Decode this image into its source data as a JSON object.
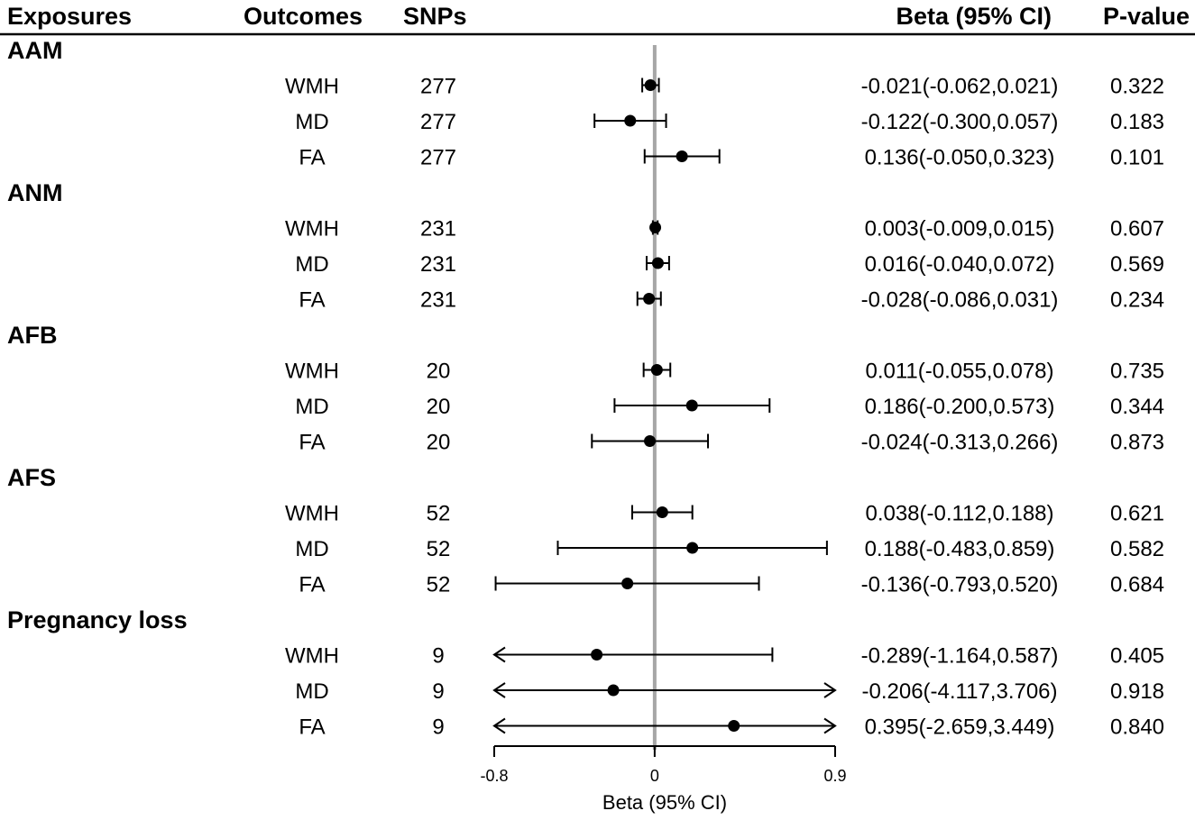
{
  "headers": {
    "exposures": "Exposures",
    "outcomes": "Outcomes",
    "snps": "SNPs",
    "beta": "Beta (95% CI)",
    "pvalue": "P-value"
  },
  "chart_data": {
    "type": "forest",
    "xlabel": "Beta (95% CI)",
    "xlim": [
      -0.8,
      0.9
    ],
    "ticks": [
      -0.8,
      0,
      0.9
    ],
    "tick_labels": [
      "-0.8",
      "0",
      "0.9"
    ],
    "reference_line": 0,
    "groups": [
      {
        "name": "AAM",
        "rows": [
          {
            "outcome": "WMH",
            "snps": "277",
            "beta": -0.021,
            "lo": -0.062,
            "hi": 0.021,
            "ci_text": "-0.021(-0.062,0.021)",
            "p": "0.322"
          },
          {
            "outcome": "MD",
            "snps": "277",
            "beta": -0.122,
            "lo": -0.3,
            "hi": 0.057,
            "ci_text": "-0.122(-0.300,0.057)",
            "p": "0.183"
          },
          {
            "outcome": "FA",
            "snps": "277",
            "beta": 0.136,
            "lo": -0.05,
            "hi": 0.323,
            "ci_text": "0.136(-0.050,0.323)",
            "p": "0.101"
          }
        ]
      },
      {
        "name": "ANM",
        "rows": [
          {
            "outcome": "WMH",
            "snps": "231",
            "beta": 0.003,
            "lo": -0.009,
            "hi": 0.015,
            "ci_text": "0.003(-0.009,0.015)",
            "p": "0.607"
          },
          {
            "outcome": "MD",
            "snps": "231",
            "beta": 0.016,
            "lo": -0.04,
            "hi": 0.072,
            "ci_text": "0.016(-0.040,0.072)",
            "p": "0.569"
          },
          {
            "outcome": "FA",
            "snps": "231",
            "beta": -0.028,
            "lo": -0.086,
            "hi": 0.031,
            "ci_text": "-0.028(-0.086,0.031)",
            "p": "0.234"
          }
        ]
      },
      {
        "name": "AFB",
        "rows": [
          {
            "outcome": "WMH",
            "snps": "20",
            "beta": 0.011,
            "lo": -0.055,
            "hi": 0.078,
            "ci_text": "0.011(-0.055,0.078)",
            "p": "0.735"
          },
          {
            "outcome": "MD",
            "snps": "20",
            "beta": 0.186,
            "lo": -0.2,
            "hi": 0.573,
            "ci_text": "0.186(-0.200,0.573)",
            "p": "0.344"
          },
          {
            "outcome": "FA",
            "snps": "20",
            "beta": -0.024,
            "lo": -0.313,
            "hi": 0.266,
            "ci_text": "-0.024(-0.313,0.266)",
            "p": "0.873"
          }
        ]
      },
      {
        "name": "AFS",
        "rows": [
          {
            "outcome": "WMH",
            "snps": "52",
            "beta": 0.038,
            "lo": -0.112,
            "hi": 0.188,
            "ci_text": "0.038(-0.112,0.188)",
            "p": "0.621"
          },
          {
            "outcome": "MD",
            "snps": "52",
            "beta": 0.188,
            "lo": -0.483,
            "hi": 0.859,
            "ci_text": "0.188(-0.483,0.859)",
            "p": "0.582"
          },
          {
            "outcome": "FA",
            "snps": "52",
            "beta": -0.136,
            "lo": -0.793,
            "hi": 0.52,
            "ci_text": "-0.136(-0.793,0.520)",
            "p": "0.684"
          }
        ]
      },
      {
        "name": "Pregnancy loss",
        "rows": [
          {
            "outcome": "WMH",
            "snps": "9",
            "beta": -0.289,
            "lo": -1.164,
            "hi": 0.587,
            "ci_text": "-0.289(-1.164,0.587)",
            "p": "0.405"
          },
          {
            "outcome": "MD",
            "snps": "9",
            "beta": -0.206,
            "lo": -4.117,
            "hi": 3.706,
            "ci_text": "-0.206(-4.117,3.706)",
            "p": "0.918"
          },
          {
            "outcome": "FA",
            "snps": "9",
            "beta": 0.395,
            "lo": -2.659,
            "hi": 3.449,
            "ci_text": "0.395(-2.659,3.449)",
            "p": "0.840"
          }
        ]
      }
    ]
  }
}
